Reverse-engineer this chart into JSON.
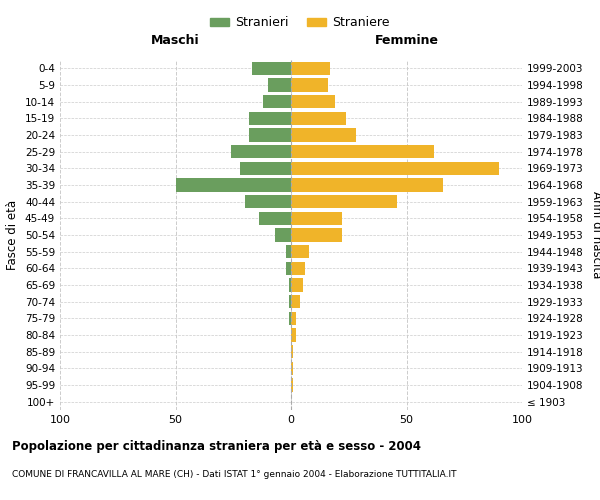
{
  "age_groups": [
    "100+",
    "95-99",
    "90-94",
    "85-89",
    "80-84",
    "75-79",
    "70-74",
    "65-69",
    "60-64",
    "55-59",
    "50-54",
    "45-49",
    "40-44",
    "35-39",
    "30-34",
    "25-29",
    "20-24",
    "15-19",
    "10-14",
    "5-9",
    "0-4"
  ],
  "birth_years": [
    "≤ 1903",
    "1904-1908",
    "1909-1913",
    "1914-1918",
    "1919-1923",
    "1924-1928",
    "1929-1933",
    "1934-1938",
    "1939-1943",
    "1944-1948",
    "1949-1953",
    "1954-1958",
    "1959-1963",
    "1964-1968",
    "1969-1973",
    "1974-1978",
    "1979-1983",
    "1984-1988",
    "1989-1993",
    "1994-1998",
    "1999-2003"
  ],
  "males": [
    0,
    0,
    0,
    0,
    0,
    1,
    1,
    1,
    2,
    2,
    7,
    14,
    20,
    50,
    22,
    26,
    18,
    18,
    12,
    10,
    17
  ],
  "females": [
    0,
    1,
    1,
    1,
    2,
    2,
    4,
    5,
    6,
    8,
    22,
    22,
    46,
    66,
    90,
    62,
    28,
    24,
    19,
    16,
    17
  ],
  "male_color": "#6a9e5e",
  "female_color": "#f0b429",
  "grid_color": "#cccccc",
  "title": "Popolazione per cittadinanza straniera per età e sesso - 2004",
  "subtitle": "COMUNE DI FRANCAVILLA AL MARE (CH) - Dati ISTAT 1° gennaio 2004 - Elaborazione TUTTITALIA.IT",
  "ylabel_left": "Fasce di età",
  "ylabel_right": "Anni di nascita",
  "legend_male": "Stranieri",
  "legend_female": "Straniere",
  "xlim": 100,
  "maschi_label": "Maschi",
  "femmine_label": "Femmine"
}
